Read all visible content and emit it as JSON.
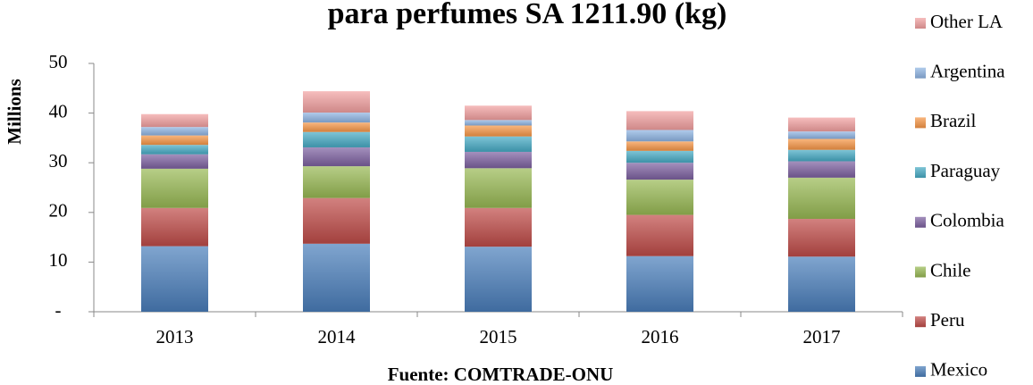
{
  "chart_data": {
    "type": "stacked_bar",
    "title": "para perfumes SA 1211.90 (kg)",
    "y_label": "Millions",
    "x_label": "Fuente: COMTRADE-ONU",
    "categories": [
      "2013",
      "2014",
      "2015",
      "2016",
      "2017"
    ],
    "series": [
      {
        "name": "Mexico",
        "color": "#4a7ebb",
        "values": [
          13.2,
          13.7,
          13.1,
          11.2,
          11.1
        ]
      },
      {
        "name": "Peru",
        "color": "#be4b48",
        "values": [
          7.7,
          9.2,
          7.8,
          8.3,
          7.6
        ]
      },
      {
        "name": "Chile",
        "color": "#98b954",
        "values": [
          7.9,
          6.4,
          8.0,
          7.1,
          8.3
        ]
      },
      {
        "name": "Colombia",
        "color": "#7d60a0",
        "values": [
          2.9,
          3.8,
          3.3,
          3.4,
          3.3
        ]
      },
      {
        "name": "Paraguay",
        "color": "#46aac5",
        "values": [
          1.9,
          3.1,
          3.1,
          2.4,
          2.3
        ]
      },
      {
        "name": "Brazil",
        "color": "#f79646",
        "values": [
          1.9,
          1.9,
          2.2,
          1.9,
          2.2
        ]
      },
      {
        "name": "Argentina",
        "color": "#8eb4e3",
        "values": [
          1.7,
          2.0,
          1.1,
          2.3,
          1.5
        ]
      },
      {
        "name": "Other LA",
        "color": "#f2a0a0",
        "values": [
          2.6,
          4.3,
          2.9,
          3.8,
          2.8
        ]
      }
    ],
    "ylim": [
      0,
      50
    ],
    "yticks": [
      {
        "value": 0,
        "label": "-"
      },
      10,
      20,
      30,
      40,
      50
    ],
    "grid": false,
    "legend": "right"
  }
}
